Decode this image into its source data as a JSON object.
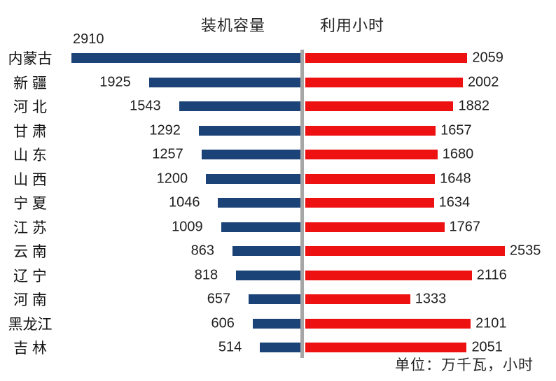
{
  "chart_data": {
    "type": "bar",
    "subtype": "diverging-horizontal",
    "categories": [
      "内蒙古",
      "新 疆",
      "河 北",
      "甘 肃",
      "山 东",
      "山 西",
      "宁 夏",
      "江 苏",
      "云 南",
      "辽 宁",
      "河 南",
      "黑龙江",
      "吉 林"
    ],
    "series": [
      {
        "name": "装机容量",
        "side": "left",
        "color": "#1B4378",
        "values": [
          2910,
          1925,
          1543,
          1292,
          1257,
          1200,
          1046,
          1009,
          863,
          818,
          657,
          606,
          514
        ]
      },
      {
        "name": "利用小时",
        "side": "right",
        "color": "#EE1111",
        "values": [
          2059,
          2002,
          1882,
          1657,
          1680,
          1648,
          1634,
          1767,
          2535,
          2116,
          1333,
          2101,
          2051
        ]
      }
    ],
    "unit_note": "单位：万千瓦，小时",
    "axis": {
      "divider_color": "#A6A6A6"
    },
    "legend_position": "top",
    "grid": false,
    "value_labels": "outside-ends"
  }
}
